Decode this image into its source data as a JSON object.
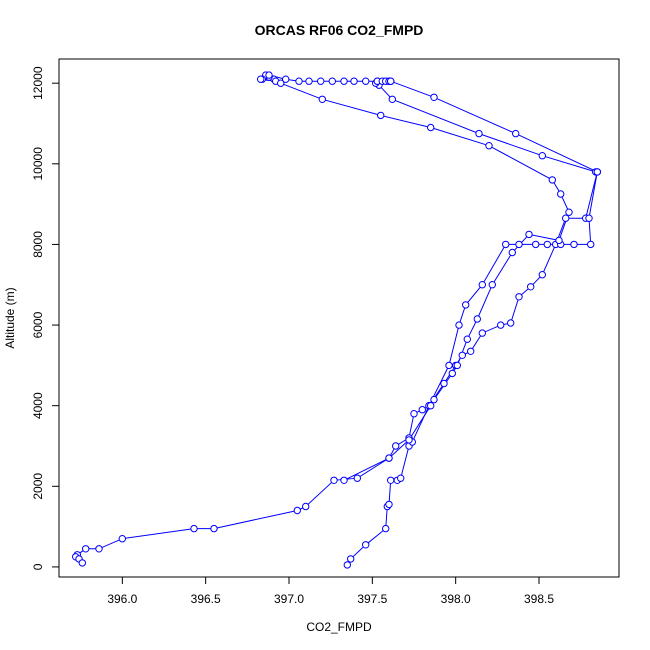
{
  "chart_data": {
    "type": "scatter",
    "title": "ORCAS RF06 CO2_FMPD",
    "xlabel": "CO2_FMPD",
    "ylabel": "Altitude (m)",
    "xlim": [
      395.62,
      398.98
    ],
    "ylim": [
      -250,
      12600
    ],
    "x_ticks": [
      396.0,
      396.5,
      397.0,
      397.5,
      398.0,
      398.5
    ],
    "x_tick_labels": [
      "396.0",
      "396.5",
      "397.0",
      "397.5",
      "398.0",
      "398.5"
    ],
    "y_ticks": [
      0,
      2000,
      4000,
      6000,
      8000,
      10000,
      12000
    ],
    "y_tick_labels": [
      "0",
      "2000",
      "4000",
      "6000",
      "8000",
      "10000",
      "12000"
    ],
    "grid": false,
    "color": "#0000ff",
    "series": [
      {
        "x": [
          397.35,
          397.37,
          397.46,
          397.58,
          397.59,
          397.6,
          397.61,
          397.65,
          397.67,
          397.72,
          397.74,
          397.84,
          397.93,
          398.0,
          398.04,
          398.09,
          398.16,
          398.27,
          398.33,
          398.38,
          398.45,
          398.52,
          398.6,
          398.66,
          398.78,
          398.85
        ],
        "y": [
          50,
          200,
          550,
          950,
          1500,
          1550,
          2150,
          2150,
          2200,
          3000,
          3100,
          4000,
          4550,
          5000,
          5250,
          5350,
          5800,
          6000,
          6050,
          6700,
          6950,
          7250,
          8000,
          8650,
          8650,
          9800
        ]
      },
      {
        "x": [
          398.84,
          398.52,
          398.14,
          397.62,
          397.54,
          397.52,
          397.53,
          397.6
        ],
        "y": [
          9800,
          10200,
          10750,
          11600,
          11950,
          12000,
          12050,
          12050
        ]
      },
      {
        "x": [
          396.87,
          396.91,
          396.88,
          396.86,
          396.84,
          396.88,
          396.98,
          397.06,
          397.12,
          397.19,
          397.26,
          397.33,
          397.39,
          397.46,
          397.53,
          397.56,
          397.58,
          397.6,
          397.61
        ],
        "y": [
          12150,
          12100,
          12150,
          12200,
          12100,
          12200,
          12100,
          12050,
          12050,
          12050,
          12050,
          12050,
          12050,
          12050,
          12050,
          12050,
          12050,
          12050,
          12050
        ]
      },
      {
        "x": [
          397.61,
          397.87,
          398.36,
          398.85,
          398.8,
          398.81,
          398.71,
          398.63,
          398.55,
          398.48,
          398.38,
          398.3,
          398.16,
          398.06,
          398.02,
          397.96,
          397.84,
          397.8,
          397.75,
          397.72,
          397.64,
          397.6,
          397.41,
          397.27,
          397.1,
          397.05,
          396.55,
          396.43,
          396.0,
          395.86,
          395.78,
          395.73,
          395.72,
          395.74,
          395.76
        ],
        "y": [
          12050,
          11650,
          10750,
          9800,
          8650,
          8000,
          8000,
          8000,
          8000,
          8000,
          8000,
          8000,
          7000,
          6500,
          6000,
          5000,
          4000,
          3900,
          3800,
          3200,
          3000,
          2700,
          2200,
          2150,
          1500,
          1400,
          950,
          950,
          700,
          450,
          450,
          300,
          250,
          200,
          100
        ]
      },
      {
        "x": [
          396.83,
          396.92,
          396.95,
          397.2,
          397.55,
          397.85,
          398.2,
          398.58,
          398.63,
          398.68,
          398.62,
          398.44,
          398.34,
          398.22,
          398.13,
          398.07,
          398.01,
          397.98,
          397.87,
          397.85,
          397.72,
          397.6,
          397.33
        ],
        "y": [
          12100,
          12050,
          12000,
          11600,
          11200,
          10900,
          10450,
          9600,
          9250,
          8800,
          8100,
          8250,
          7800,
          7000,
          6150,
          5650,
          5000,
          4800,
          4150,
          4000,
          3150,
          2700,
          2150
        ]
      }
    ]
  }
}
